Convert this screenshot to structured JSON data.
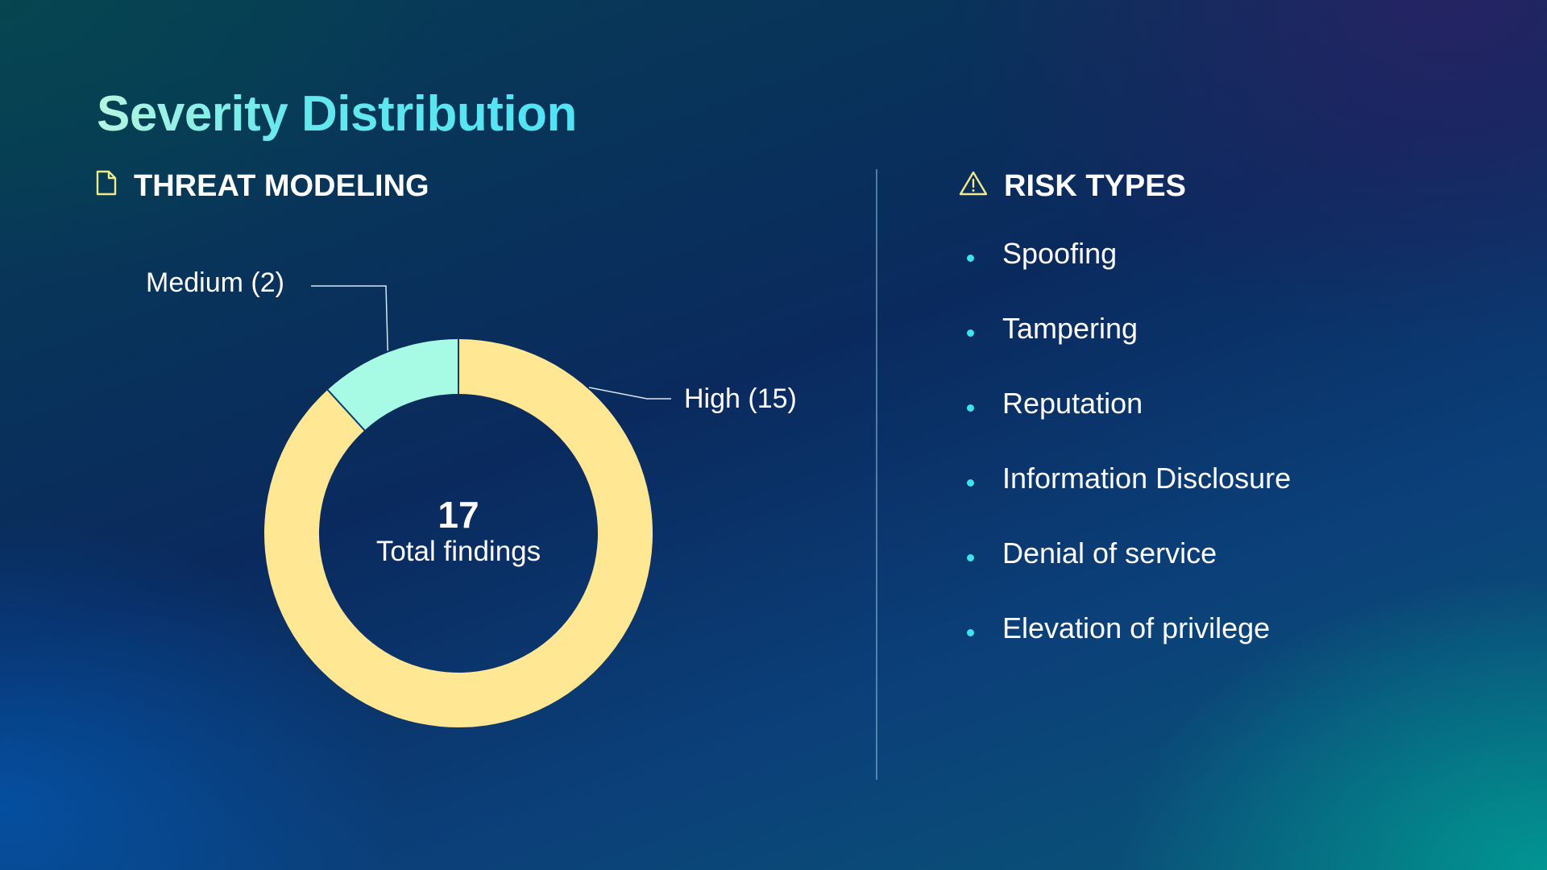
{
  "title": "Severity Distribution",
  "left_section": {
    "heading": "THREAT MODELING",
    "icon": "document-icon"
  },
  "right_section": {
    "heading": "RISK TYPES",
    "icon": "warning-triangle-icon",
    "items": [
      "Spoofing",
      "Tampering",
      "Reputation",
      "Information Disclosure",
      "Denial of service",
      "Elevation of privilege"
    ]
  },
  "colors": {
    "high": "#ffe793",
    "medium": "#a7fbe4",
    "accent": "#3ee3ef"
  },
  "chart_data": {
    "type": "pie",
    "variant": "donut",
    "center_value": "17",
    "center_label": "Total findings",
    "slices": [
      {
        "label": "High (15)",
        "name": "High",
        "value": 15
      },
      {
        "label": "Medium (2)",
        "name": "Medium",
        "value": 2
      }
    ]
  }
}
